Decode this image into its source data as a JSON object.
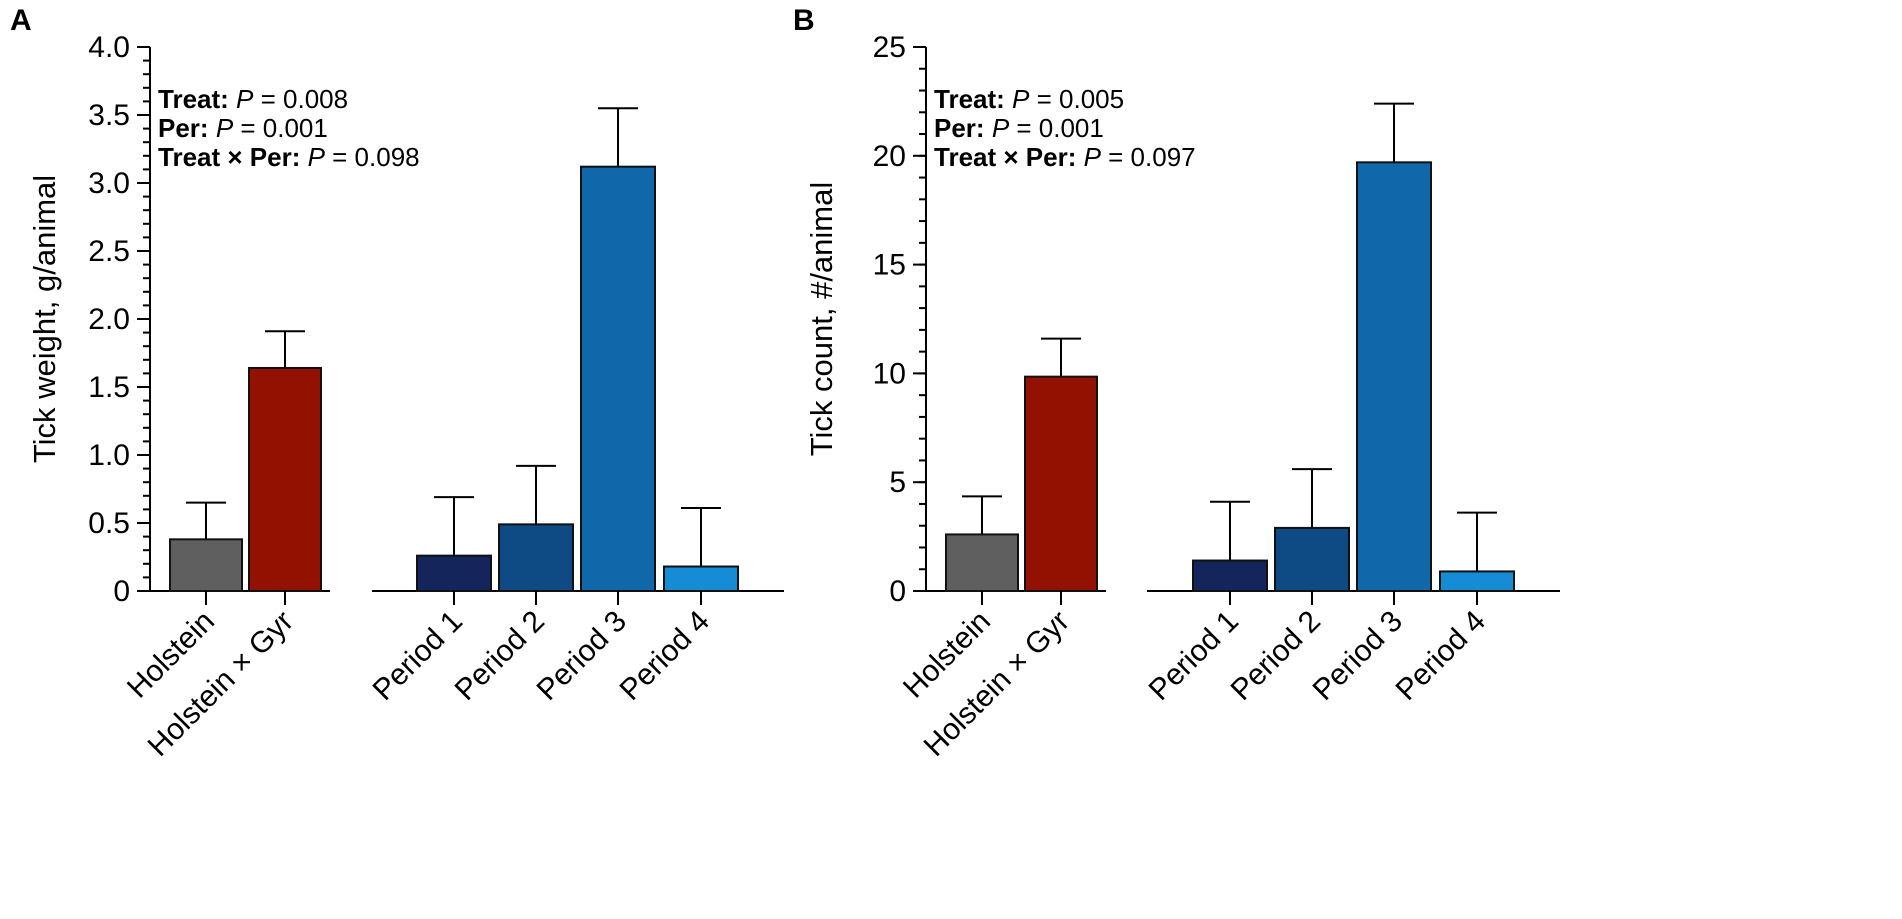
{
  "chart_data": [
    {
      "type": "bar",
      "panel_label": "A",
      "ylabel": "Tick weight, g/animal",
      "ylim": [
        0,
        4.0
      ],
      "ytick_major": [
        "0",
        "0.5",
        "1.0",
        "1.5",
        "2.0",
        "2.5",
        "3.0",
        "3.5",
        "4.0"
      ],
      "ytick_values": [
        0,
        0.5,
        1.0,
        1.5,
        2.0,
        2.5,
        3.0,
        3.5,
        4.0
      ],
      "minor_step": 0.1,
      "stats": [
        {
          "label": "Treat:",
          "p": "P",
          "value": " = 0.008"
        },
        {
          "label": "Per:",
          "p": "P",
          "value": " = 0.001"
        },
        {
          "label": "Treat × Per:",
          "p": "P",
          "value": " = 0.098"
        }
      ],
      "groups": [
        {
          "name": "treatment",
          "categories": [
            "Holstein",
            "Holstein × Gyr"
          ],
          "values": [
            0.38,
            1.64
          ],
          "errors": [
            0.27,
            0.27
          ],
          "colors": [
            "#5f5f5f",
            "#931100"
          ]
        },
        {
          "name": "period",
          "categories": [
            "Period 1",
            "Period 2",
            "Period 3",
            "Period 4"
          ],
          "values": [
            0.26,
            0.49,
            3.12,
            0.18
          ],
          "errors": [
            0.43,
            0.43,
            0.43,
            0.43
          ],
          "colors": [
            "#13255a",
            "#0e4a84",
            "#1068ab",
            "#168bd6"
          ]
        }
      ]
    },
    {
      "type": "bar",
      "panel_label": "B",
      "ylabel": "Tick count, #/animal",
      "ylim": [
        0,
        25
      ],
      "ytick_major": [
        "0",
        "5",
        "10",
        "15",
        "20",
        "25"
      ],
      "ytick_values": [
        0,
        5,
        10,
        15,
        20,
        25
      ],
      "minor_step": 1,
      "stats": [
        {
          "label": "Treat:",
          "p": "P",
          "value": " = 0.005"
        },
        {
          "label": "Per:",
          "p": "P",
          "value": " = 0.001"
        },
        {
          "label": "Treat × Per:",
          "p": "P",
          "value": " = 0.097"
        }
      ],
      "groups": [
        {
          "name": "treatment",
          "categories": [
            "Holstein",
            "Holstein × Gyr"
          ],
          "values": [
            2.6,
            9.85
          ],
          "errors": [
            1.75,
            1.75
          ],
          "colors": [
            "#5f5f5f",
            "#931100"
          ]
        },
        {
          "name": "period",
          "categories": [
            "Period 1",
            "Period 2",
            "Period 3",
            "Period 4"
          ],
          "values": [
            1.4,
            2.9,
            19.7,
            0.9
          ],
          "errors": [
            2.7,
            2.7,
            2.7,
            2.7
          ],
          "colors": [
            "#13255a",
            "#0e4a84",
            "#1068ab",
            "#168bd6"
          ]
        }
      ]
    }
  ]
}
